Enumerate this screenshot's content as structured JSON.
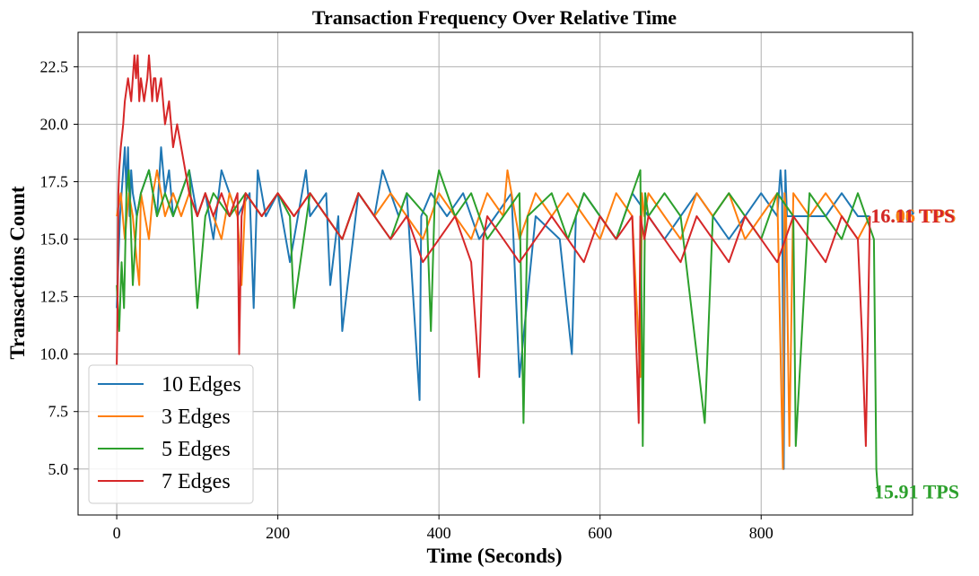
{
  "chart_data": {
    "type": "line",
    "title": "Transaction Frequency Over Relative Time",
    "xlabel": "Time (Seconds)",
    "ylabel": "Transactions Count",
    "xlim": [
      -48,
      988
    ],
    "ylim": [
      3.0,
      24.0
    ],
    "xticks": [
      0,
      200,
      400,
      600,
      800
    ],
    "xtick_labels": [
      "0",
      "200",
      "400",
      "600",
      "800"
    ],
    "yticks": [
      5.0,
      7.5,
      10.0,
      12.5,
      15.0,
      17.5,
      20.0,
      22.5
    ],
    "ytick_labels": [
      "5.0",
      "7.5",
      "10.0",
      "12.5",
      "15.0",
      "17.5",
      "20.0",
      "22.5"
    ],
    "grid": true,
    "legend_position": "lower-left",
    "series": [
      {
        "name": "10 Edges",
        "color": "#1f77b4",
        "end_label": "16.08 TPS",
        "x": [
          0,
          2,
          4,
          6,
          8,
          10,
          12,
          14,
          16,
          18,
          20,
          25,
          30,
          40,
          50,
          55,
          60,
          65,
          70,
          80,
          90,
          100,
          110,
          120,
          130,
          150,
          165,
          170,
          175,
          185,
          200,
          215,
          235,
          240,
          260,
          265,
          275,
          280,
          300,
          320,
          330,
          350,
          360,
          376,
          378,
          390,
          410,
          430,
          450,
          470,
          490,
          500,
          520,
          550,
          565,
          570,
          580,
          600,
          620,
          640,
          660,
          680,
          700,
          720,
          740,
          760,
          780,
          800,
          820,
          824,
          826,
          828,
          830,
          832,
          850,
          880,
          900,
          920,
          935
        ],
        "y": [
          12,
          14,
          16,
          17,
          18,
          19,
          17,
          19,
          16,
          18,
          17,
          16,
          17,
          18,
          16,
          19,
          17,
          18,
          16,
          17,
          18,
          16,
          17,
          15,
          18,
          16,
          17,
          12,
          18,
          16,
          17,
          14,
          18,
          16,
          17,
          13,
          16,
          11,
          17,
          16,
          18,
          16,
          17,
          8,
          16,
          17,
          16,
          17,
          15,
          16,
          17,
          9,
          16,
          15,
          10,
          16,
          17,
          16,
          15,
          17,
          16,
          15,
          16,
          17,
          16,
          15,
          16,
          17,
          16,
          18,
          17,
          5,
          18,
          16,
          16,
          16,
          17,
          16,
          16
        ]
      },
      {
        "name": "3 Edges",
        "color": "#ff7f0e",
        "end_label": "16.06 TPS",
        "x": [
          0,
          5,
          10,
          15,
          20,
          25,
          28,
          30,
          35,
          40,
          45,
          50,
          60,
          70,
          80,
          90,
          100,
          110,
          120,
          130,
          140,
          150,
          155,
          160,
          180,
          200,
          220,
          240,
          260,
          280,
          300,
          320,
          340,
          360,
          380,
          400,
          420,
          440,
          460,
          480,
          485,
          490,
          495,
          500,
          520,
          540,
          560,
          580,
          600,
          620,
          640,
          650,
          652,
          655,
          660,
          680,
          700,
          720,
          740,
          760,
          780,
          800,
          820,
          827,
          829,
          831,
          835,
          840,
          860,
          880,
          900,
          920,
          935
        ],
        "y": [
          16,
          17,
          15,
          17,
          16,
          14,
          13,
          17,
          16,
          15,
          17,
          18,
          16,
          17,
          16,
          17,
          16,
          17,
          16,
          15,
          17,
          16,
          13,
          17,
          16,
          17,
          16,
          17,
          16,
          15,
          17,
          16,
          17,
          16,
          15,
          17,
          16,
          15,
          17,
          16,
          18,
          17,
          16,
          15,
          17,
          16,
          17,
          16,
          15,
          17,
          16,
          9,
          17,
          16,
          17,
          16,
          15,
          17,
          16,
          17,
          15,
          16,
          17,
          5,
          17,
          16,
          6,
          17,
          16,
          17,
          16,
          15,
          16
        ]
      },
      {
        "name": "5 Edges",
        "color": "#2ca02c",
        "end_label": "15.91 TPS",
        "x": [
          0,
          3,
          6,
          9,
          12,
          15,
          20,
          25,
          30,
          40,
          50,
          60,
          70,
          80,
          90,
          100,
          110,
          120,
          140,
          160,
          180,
          200,
          215,
          220,
          240,
          260,
          280,
          300,
          320,
          340,
          360,
          385,
          390,
          395,
          400,
          420,
          440,
          460,
          480,
          500,
          505,
          510,
          540,
          560,
          570,
          580,
          600,
          620,
          640,
          650,
          653,
          656,
          660,
          680,
          700,
          730,
          740,
          760,
          780,
          800,
          820,
          840,
          843,
          860,
          880,
          900,
          920,
          940,
          943,
          945
        ],
        "y": [
          13,
          11,
          14,
          12,
          17,
          18,
          13,
          16,
          17,
          18,
          16,
          17,
          16,
          17,
          18,
          12,
          16,
          17,
          16,
          17,
          16,
          17,
          16,
          12,
          17,
          16,
          15,
          17,
          16,
          15,
          17,
          16,
          11,
          17,
          18,
          16,
          17,
          15,
          16,
          17,
          7,
          16,
          17,
          15,
          16,
          17,
          16,
          15,
          17,
          18,
          6,
          17,
          16,
          17,
          16,
          7,
          16,
          17,
          16,
          15,
          17,
          16,
          6,
          17,
          16,
          15,
          17,
          15,
          5,
          4
        ]
      },
      {
        "name": "7 Edges",
        "color": "#d62728",
        "end_label": "16.11 TPS",
        "x": [
          0,
          1,
          2,
          3,
          5,
          8,
          10,
          14,
          18,
          20,
          22,
          24,
          26,
          28,
          30,
          34,
          38,
          40,
          42,
          44,
          46,
          48,
          50,
          55,
          60,
          65,
          70,
          75,
          80,
          85,
          90,
          100,
          110,
          120,
          130,
          140,
          150,
          152,
          155,
          160,
          180,
          200,
          220,
          240,
          260,
          280,
          300,
          320,
          340,
          360,
          380,
          400,
          420,
          440,
          450,
          455,
          460,
          480,
          500,
          520,
          540,
          560,
          580,
          600,
          620,
          640,
          648,
          650,
          655,
          660,
          680,
          700,
          720,
          740,
          760,
          780,
          800,
          820,
          840,
          860,
          880,
          900,
          920,
          925,
          930,
          935
        ],
        "y": [
          9.5,
          12,
          17,
          18,
          19,
          20,
          21,
          22,
          21,
          22,
          23,
          22,
          23,
          21,
          22,
          21,
          22,
          23,
          22,
          21,
          22,
          22,
          21,
          22,
          20,
          21,
          19,
          20,
          19,
          18,
          17,
          16,
          17,
          16,
          17,
          16,
          17,
          10,
          16,
          17,
          16,
          17,
          16,
          17,
          16,
          15,
          17,
          16,
          15,
          16,
          14,
          15,
          16,
          14,
          9,
          15,
          16,
          15,
          14,
          15,
          16,
          15,
          14,
          16,
          15,
          16,
          7,
          16,
          15,
          16,
          15,
          14,
          16,
          15,
          14,
          16,
          15,
          14,
          16,
          15,
          14,
          16,
          15,
          11,
          6,
          16
        ]
      }
    ]
  }
}
